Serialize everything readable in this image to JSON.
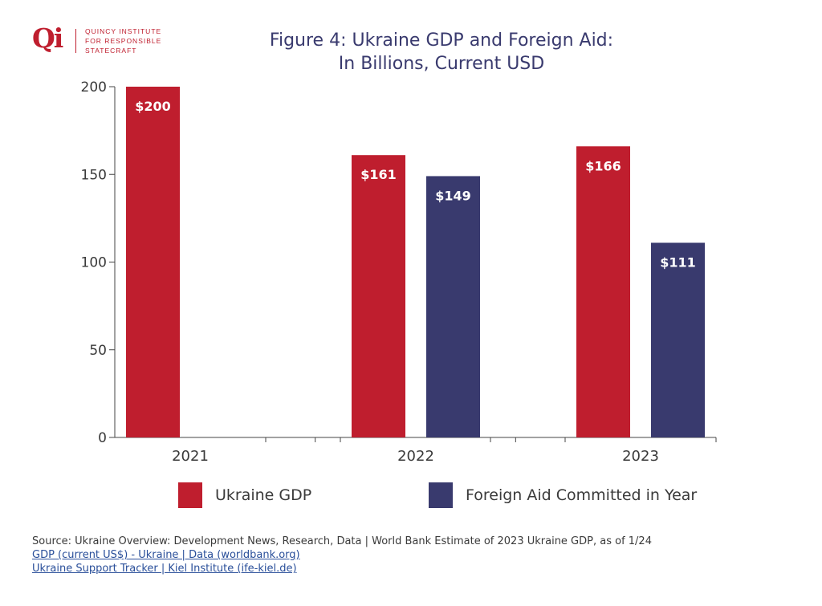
{
  "logo": {
    "mark": "Qi",
    "lines": [
      "QUINCY INSTITUTE",
      "FOR RESPONSIBLE",
      "STATECRAFT"
    ]
  },
  "title": {
    "line1": "Figure 4: Ukraine GDP and Foreign Aid:",
    "line2": "In Billions, Current USD"
  },
  "colors": {
    "gdp": "#bf1e2e",
    "aid": "#393a6e",
    "title_text": "#393a6e",
    "axis_text": "#3a3a3a",
    "axis_line": "#444444",
    "link": "#2a4f9a"
  },
  "chart_data": {
    "type": "bar",
    "categories": [
      "2021",
      "2022",
      "2023"
    ],
    "series": [
      {
        "name": "Ukraine GDP",
        "values": [
          200,
          161,
          166
        ],
        "labels": [
          "$200",
          "$161",
          "$166"
        ]
      },
      {
        "name": "Foreign Aid Committed in Year",
        "values": [
          null,
          149,
          111
        ],
        "labels": [
          "",
          "$149",
          "$111"
        ]
      }
    ],
    "title": "Figure 4: Ukraine GDP and Foreign Aid: In Billions, Current USD",
    "xlabel": "",
    "ylabel": "",
    "ylim": [
      0,
      200
    ],
    "yticks": [
      0,
      50,
      100,
      150,
      200
    ],
    "grid": false,
    "legend_position": "bottom"
  },
  "legend": {
    "gdp_label": "Ukraine GDP",
    "aid_label": "Foreign Aid Committed in Year"
  },
  "source": {
    "line1": "Source: Ukraine Overview: Development News, Research, Data | World Bank Estimate of 2023 Ukraine GDP, as of 1/24",
    "link1": "GDP (current US$) - Ukraine | Data (worldbank.org)",
    "link2": "Ukraine Support Tracker | Kiel Institute (ife-kiel.de)"
  }
}
